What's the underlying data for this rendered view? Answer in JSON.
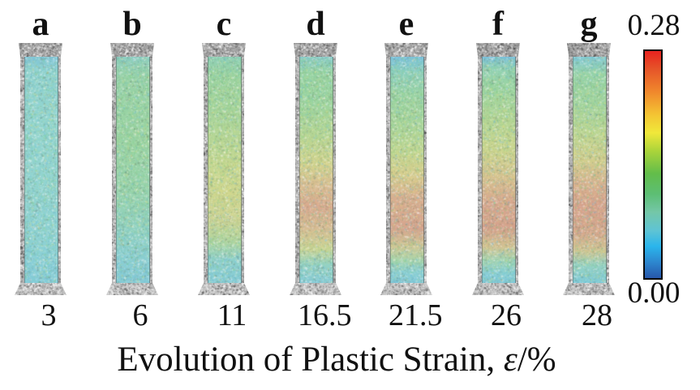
{
  "figure": {
    "caption": {
      "prefix": "Evolution of Plastic Strain, ",
      "symbol": "ε",
      "suffix": "/%"
    },
    "colorbar": {
      "max_label": "0.28",
      "min_label": "0.00",
      "stops": [
        {
          "p": 0,
          "c": "#e8231f"
        },
        {
          "p": 8,
          "c": "#e65529"
        },
        {
          "p": 18,
          "c": "#f0882c"
        },
        {
          "p": 28,
          "c": "#f4c433"
        },
        {
          "p": 36,
          "c": "#f0e83a"
        },
        {
          "p": 44,
          "c": "#abd43a"
        },
        {
          "p": 54,
          "c": "#62bd4a"
        },
        {
          "p": 63,
          "c": "#5dbe74"
        },
        {
          "p": 71,
          "c": "#74c7a8"
        },
        {
          "p": 79,
          "c": "#5fc4d4"
        },
        {
          "p": 86,
          "c": "#2ab5ec"
        },
        {
          "p": 93,
          "c": "#2d87cf"
        },
        {
          "p": 100,
          "c": "#2757ab"
        }
      ]
    },
    "specimens": [
      {
        "label": "a",
        "strain": "3",
        "stops": [
          {
            "p": 0,
            "c": "#83c6d8"
          },
          {
            "p": 6,
            "c": "#8fd2cf"
          },
          {
            "p": 30,
            "c": "#93d5cf"
          },
          {
            "p": 60,
            "c": "#92d4d0"
          },
          {
            "p": 85,
            "c": "#8cd1d4"
          },
          {
            "p": 100,
            "c": "#85ccd9"
          }
        ]
      },
      {
        "label": "b",
        "strain": "6",
        "stops": [
          {
            "p": 0,
            "c": "#8bcdc2"
          },
          {
            "p": 8,
            "c": "#97d2a9"
          },
          {
            "p": 35,
            "c": "#9bd4a2"
          },
          {
            "p": 60,
            "c": "#97d3ae"
          },
          {
            "p": 78,
            "c": "#90d1c3"
          },
          {
            "p": 90,
            "c": "#89ced3"
          },
          {
            "p": 100,
            "c": "#86cbd7"
          }
        ]
      },
      {
        "label": "c",
        "strain": "11",
        "stops": [
          {
            "p": 0,
            "c": "#8fd0b8"
          },
          {
            "p": 8,
            "c": "#9ad3a0"
          },
          {
            "p": 25,
            "c": "#a8d59a"
          },
          {
            "p": 45,
            "c": "#c2d791"
          },
          {
            "p": 60,
            "c": "#cfd78f"
          },
          {
            "p": 72,
            "c": "#ccd394"
          },
          {
            "p": 82,
            "c": "#aed5a0"
          },
          {
            "p": 90,
            "c": "#8ed0cd"
          },
          {
            "p": 100,
            "c": "#86ccd7"
          }
        ]
      },
      {
        "label": "d",
        "strain": "16.5",
        "stops": [
          {
            "p": 0,
            "c": "#8bccca"
          },
          {
            "p": 7,
            "c": "#97d3a3"
          },
          {
            "p": 20,
            "c": "#9cd49f"
          },
          {
            "p": 35,
            "c": "#b7d694"
          },
          {
            "p": 47,
            "c": "#d2d38e"
          },
          {
            "p": 57,
            "c": "#d9bd92"
          },
          {
            "p": 66,
            "c": "#d9aa8f"
          },
          {
            "p": 76,
            "c": "#d6bc93"
          },
          {
            "p": 85,
            "c": "#cbd595"
          },
          {
            "p": 92,
            "c": "#93d2c4"
          },
          {
            "p": 100,
            "c": "#87cbd7"
          }
        ]
      },
      {
        "label": "e",
        "strain": "21.5",
        "stops": [
          {
            "p": 0,
            "c": "#7cc1db"
          },
          {
            "p": 6,
            "c": "#8bcfc0"
          },
          {
            "p": 16,
            "c": "#99d3a4"
          },
          {
            "p": 30,
            "c": "#a8d59a"
          },
          {
            "p": 42,
            "c": "#c2d791"
          },
          {
            "p": 52,
            "c": "#d6cd8d"
          },
          {
            "p": 62,
            "c": "#d9b090"
          },
          {
            "p": 76,
            "c": "#d6a58e"
          },
          {
            "p": 84,
            "c": "#cfc795"
          },
          {
            "p": 90,
            "c": "#a8d4ad"
          },
          {
            "p": 95,
            "c": "#8bcfd2"
          },
          {
            "p": 100,
            "c": "#83cad9"
          }
        ]
      },
      {
        "label": "f",
        "strain": "26",
        "stops": [
          {
            "p": 0,
            "c": "#7bc0db"
          },
          {
            "p": 5,
            "c": "#90d1b4"
          },
          {
            "p": 14,
            "c": "#9cd4a0"
          },
          {
            "p": 28,
            "c": "#b4d695"
          },
          {
            "p": 42,
            "c": "#cdd58f"
          },
          {
            "p": 54,
            "c": "#d7c190"
          },
          {
            "p": 64,
            "c": "#d8a88e"
          },
          {
            "p": 76,
            "c": "#d5a28c"
          },
          {
            "p": 84,
            "c": "#d2c292"
          },
          {
            "p": 90,
            "c": "#a2d3b3"
          },
          {
            "p": 95,
            "c": "#89cfd4"
          },
          {
            "p": 100,
            "c": "#82cad9"
          }
        ]
      },
      {
        "label": "g",
        "strain": "28",
        "stops": [
          {
            "p": 0,
            "c": "#85cad6"
          },
          {
            "p": 8,
            "c": "#97d3a6"
          },
          {
            "p": 20,
            "c": "#a2d49e"
          },
          {
            "p": 34,
            "c": "#bdd692"
          },
          {
            "p": 46,
            "c": "#d3cd8e"
          },
          {
            "p": 56,
            "c": "#d8b28f"
          },
          {
            "p": 66,
            "c": "#d7a28c"
          },
          {
            "p": 78,
            "c": "#d6a88d"
          },
          {
            "p": 86,
            "c": "#cfc593"
          },
          {
            "p": 92,
            "c": "#96d2c2"
          },
          {
            "p": 100,
            "c": "#7fcad8"
          }
        ]
      }
    ]
  },
  "chart_data": {
    "type": "heatmap",
    "title": "Evolution of Plastic Strain, ε/%",
    "panels": [
      "a",
      "b",
      "c",
      "d",
      "e",
      "f",
      "g"
    ],
    "strain_percent": [
      3,
      6,
      11,
      16.5,
      21.5,
      26,
      28
    ],
    "colorbar": {
      "min": 0.0,
      "max": 0.28,
      "min_label": "0.00",
      "max_label": "0.28",
      "position": "right",
      "colormap": "rainbow (red=0.28 top to blue=0.00 bottom)"
    },
    "description": "Seven tensile specimen strain-field maps (DIC) at increasing applied strain; local plastic strain shown by color, low (cyan/blue) near grips and increasing (yellow to red) in lower-middle gauge region as strain grows"
  }
}
